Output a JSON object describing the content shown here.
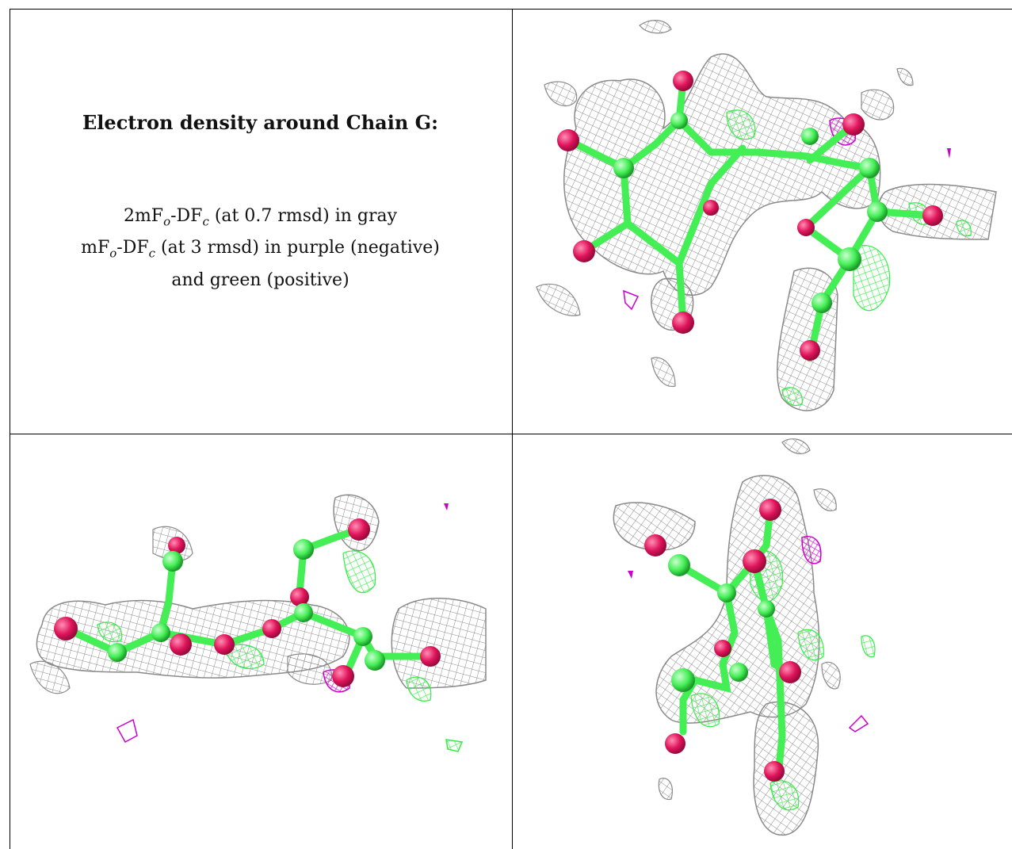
{
  "caption": {
    "title": "Electron density around Chain G:",
    "line1": {
      "prefix": "2mF",
      "sub1": "o",
      "mid": "-DF",
      "sub2": "c",
      "suffix": " (at 0.7 rmsd) in gray"
    },
    "line2": {
      "prefix": "mF",
      "sub1": "o",
      "mid": "-DF",
      "sub2": "c",
      "suffix": " (at 3 rmsd) in purple (negative)"
    },
    "line3": "and green (positive)"
  },
  "colors": {
    "mesh_gray": "#8a8a8a",
    "negative_purple": "#cc00cc",
    "positive_green": "#33ee44",
    "bond_green": "#44ee55",
    "oxygen_red": "#e0145a"
  },
  "panels": [
    "top-right-view",
    "bottom-left-view",
    "bottom-right-view"
  ]
}
